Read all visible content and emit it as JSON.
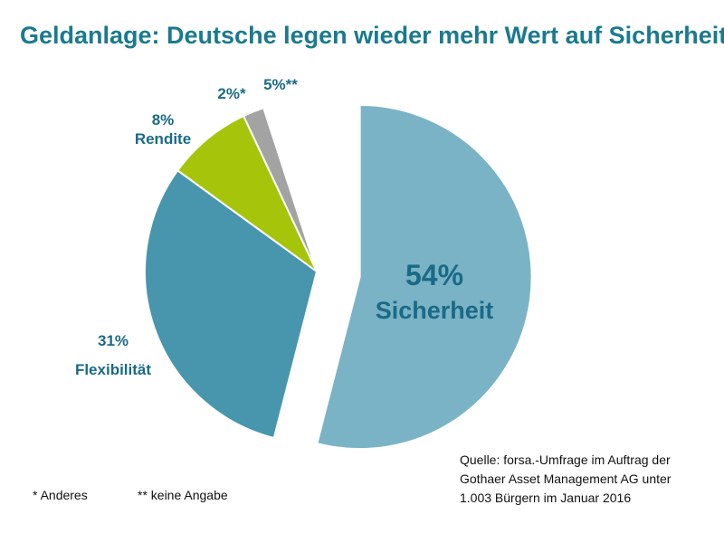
{
  "title": "Geldanlage: Deutsche legen wieder mehr Wert auf Sicherheit",
  "chart_data": {
    "type": "pie",
    "slices": [
      {
        "value_label": "54%",
        "category": "Sicherheit",
        "value": 54,
        "color": "#7ab3c6",
        "exploded": true
      },
      {
        "value_label": "31%",
        "category": "Flexibilität",
        "value": 31,
        "color": "#4796ae",
        "exploded": false
      },
      {
        "value_label": "8%",
        "category": "Rendite",
        "value": 8,
        "color": "#a6c409",
        "exploded": false
      },
      {
        "value_label": "2%*",
        "category": "",
        "value": 2,
        "color": "#a3a3a3",
        "exploded": false
      },
      {
        "value_label": "5%**",
        "category": "",
        "value": 5,
        "color": "#ffffff",
        "exploded": false
      }
    ]
  },
  "footnotes": {
    "anderes": "* Anderes",
    "keine_angabe": "** keine Angabe"
  },
  "source": {
    "line1": "Quelle: forsa.-Umfrage im Auftrag der",
    "line2": "Gothaer Asset Management AG  unter",
    "line3": "1.003 Bürgern im Januar 2016"
  }
}
